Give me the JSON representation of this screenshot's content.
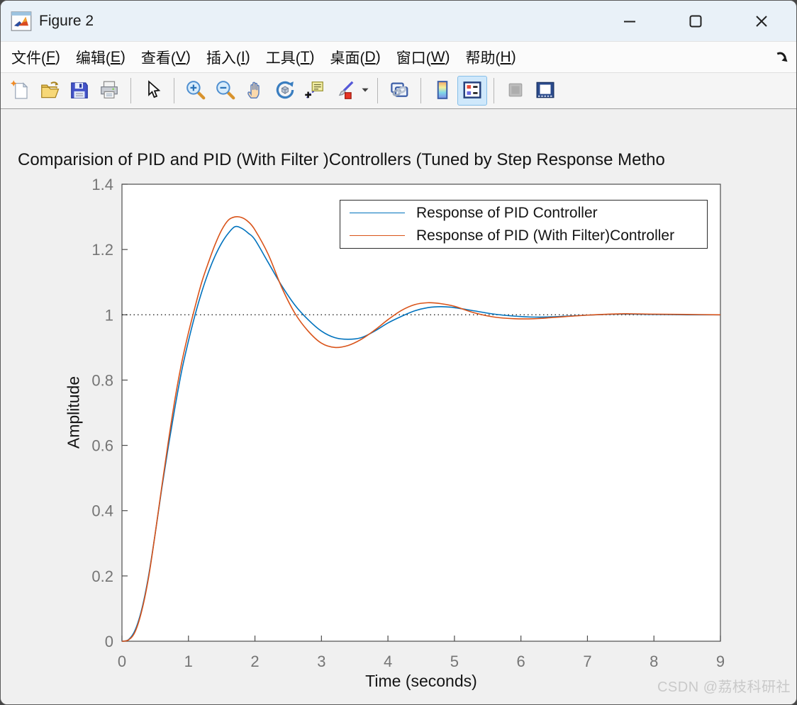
{
  "window": {
    "title": "Figure 2",
    "icon": "matlab-figure-icon",
    "controls": [
      "minimize",
      "maximize",
      "close"
    ]
  },
  "menu": {
    "items": [
      {
        "label": "文件",
        "mnemonic": "F"
      },
      {
        "label": "编辑",
        "mnemonic": "E"
      },
      {
        "label": "查看",
        "mnemonic": "V"
      },
      {
        "label": "插入",
        "mnemonic": "I"
      },
      {
        "label": "工具",
        "mnemonic": "T"
      },
      {
        "label": "桌面",
        "mnemonic": "D"
      },
      {
        "label": "窗口",
        "mnemonic": "W"
      },
      {
        "label": "帮助",
        "mnemonic": "H"
      }
    ],
    "dock_icon": "dock-figure-arrow-icon"
  },
  "toolbar": {
    "items": [
      {
        "name": "new-figure"
      },
      {
        "name": "open-file"
      },
      {
        "name": "save-figure"
      },
      {
        "name": "print-figure"
      },
      {
        "name": "separator"
      },
      {
        "name": "edit-plot-pointer"
      },
      {
        "name": "separator"
      },
      {
        "name": "zoom-in"
      },
      {
        "name": "zoom-out"
      },
      {
        "name": "pan-hand"
      },
      {
        "name": "rotate-3d"
      },
      {
        "name": "data-cursor"
      },
      {
        "name": "brush-data"
      },
      {
        "name": "brush-dropdown-caret"
      },
      {
        "name": "separator"
      },
      {
        "name": "link-plot"
      },
      {
        "name": "separator"
      },
      {
        "name": "insert-colorbar"
      },
      {
        "name": "insert-legend",
        "state": "active"
      },
      {
        "name": "separator"
      },
      {
        "name": "hide-plot-tools",
        "state": "disabled"
      },
      {
        "name": "show-plot-tools-dock"
      }
    ]
  },
  "watermark": "CSDN @荔枝科研社",
  "chart_data": {
    "type": "line",
    "title": "Comparision of PID and PID (With Filter )Controllers (Tuned by Step Response Metho",
    "xlabel": "Time (seconds)",
    "ylabel": "Amplitude",
    "xlim": [
      0,
      9
    ],
    "ylim": [
      0,
      1.4
    ],
    "xticks": [
      0,
      1,
      2,
      3,
      4,
      5,
      6,
      7,
      8,
      9
    ],
    "xtick_labels": [
      "0",
      "1",
      "2",
      "3",
      "4",
      "5",
      "6",
      "7",
      "8",
      "9"
    ],
    "yticks": [
      0,
      0.2,
      0.4,
      0.6,
      0.8,
      1,
      1.2,
      1.4
    ],
    "ytick_labels": [
      "0",
      "0.2",
      "0.4",
      "0.6",
      "0.8",
      "1",
      "1.2",
      "1.4"
    ],
    "grid": false,
    "axis_color": "#4d4d4d",
    "tick_label_color": "#757575",
    "reference_line": {
      "y": 1,
      "style": "dotted",
      "color": "#111111"
    },
    "legend": {
      "position": "northeast",
      "border_color": "#2b2b2b",
      "background": "#ffffff"
    },
    "x": [
      0,
      0.1,
      0.2,
      0.3,
      0.4,
      0.5,
      0.6,
      0.7,
      0.8,
      0.9,
      1.0,
      1.1,
      1.2,
      1.3,
      1.4,
      1.5,
      1.6,
      1.7,
      1.8,
      1.9,
      2.0,
      2.2,
      2.4,
      2.6,
      2.8,
      3.0,
      3.2,
      3.4,
      3.6,
      3.8,
      4.0,
      4.2,
      4.4,
      4.6,
      4.8,
      5.0,
      5.3,
      5.6,
      5.9,
      6.2,
      6.5,
      7.0,
      7.5,
      8.0,
      8.5,
      9.0
    ],
    "series": [
      {
        "name": "Response of PID Controller",
        "color": "#0072BD",
        "y": [
          0,
          0.005,
          0.035,
          0.1,
          0.2,
          0.33,
          0.47,
          0.6,
          0.72,
          0.83,
          0.92,
          1.0,
          1.07,
          1.13,
          1.18,
          1.22,
          1.25,
          1.27,
          1.265,
          1.25,
          1.23,
          1.16,
          1.09,
          1.03,
          0.985,
          0.95,
          0.93,
          0.925,
          0.93,
          0.95,
          0.975,
          0.995,
          1.012,
          1.022,
          1.025,
          1.022,
          1.012,
          1.002,
          0.996,
          0.993,
          0.994,
          0.999,
          1.002,
          1.001,
          1.0,
          1.0
        ]
      },
      {
        "name": "Response of PID (With Filter)Controller",
        "color": "#D95319",
        "y": [
          0,
          0.004,
          0.03,
          0.095,
          0.195,
          0.33,
          0.475,
          0.615,
          0.745,
          0.855,
          0.945,
          1.025,
          1.1,
          1.16,
          1.215,
          1.26,
          1.29,
          1.3,
          1.298,
          1.285,
          1.26,
          1.185,
          1.085,
          1.005,
          0.95,
          0.913,
          0.9,
          0.906,
          0.925,
          0.953,
          0.985,
          1.013,
          1.031,
          1.037,
          1.034,
          1.026,
          1.006,
          0.993,
          0.988,
          0.988,
          0.992,
          0.999,
          1.003,
          1.002,
          1.001,
          1.0
        ]
      }
    ]
  }
}
